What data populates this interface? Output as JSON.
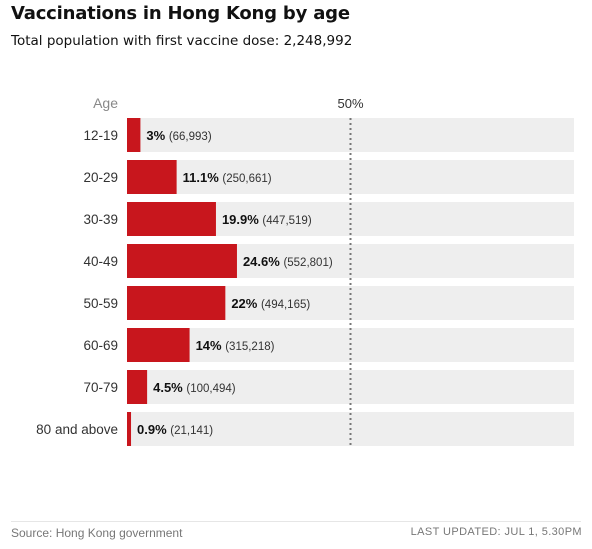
{
  "title": "Vaccinations in Hong Kong by age",
  "subtitle_label": "Total population with first vaccine dose:",
  "subtitle_value": "2,248,992",
  "footer": {
    "source": "Source: Hong Kong government",
    "updated": "LAST UPDATED: JUL 1, 5.30PM"
  },
  "colors": {
    "bar": "#c8161d",
    "track": "#eeeeee",
    "reference": "#777777"
  },
  "chart_data": {
    "type": "bar",
    "orientation": "horizontal",
    "category_axis_label": "Age",
    "reference_line": {
      "value": 50,
      "label": "50%"
    },
    "xlim": [
      0,
      100
    ],
    "categories": [
      "12-19",
      "20-29",
      "30-39",
      "40-49",
      "50-59",
      "60-69",
      "70-79",
      "80 and above"
    ],
    "values": [
      3,
      11.1,
      19.9,
      24.6,
      22,
      14,
      4.5,
      0.9
    ],
    "value_labels": [
      "3%",
      "11.1%",
      "19.9%",
      "24.6%",
      "22%",
      "14%",
      "4.5%",
      "0.9%"
    ],
    "counts": [
      "(66,993)",
      "(250,661)",
      "(447,519)",
      "(552,801)",
      "(494,165)",
      "(315,218)",
      "(100,494)",
      "(21,141)"
    ],
    "grid": false,
    "legend": "none"
  }
}
